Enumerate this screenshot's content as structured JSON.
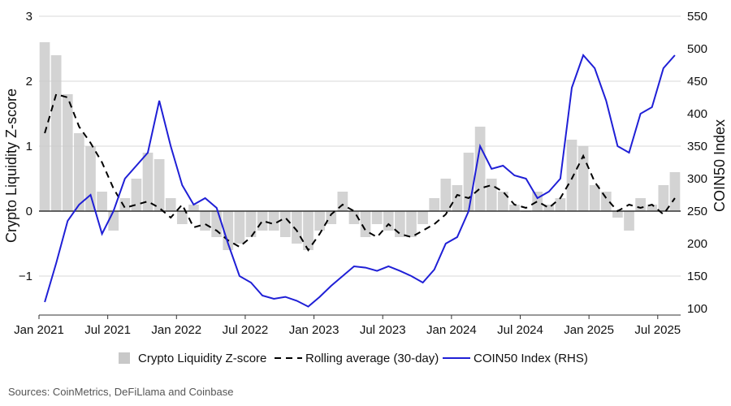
{
  "source_note": "Sources: CoinMetrics, DeFiLlama and Coinbase",
  "colors": {
    "bars": "#c8c8c8",
    "rolling": "#000000",
    "coin50": "#1f1fd6",
    "zero_line": "#333333",
    "grid": "#d9d9d9"
  },
  "chart_data": {
    "type": "line",
    "title": "",
    "xlabel": "",
    "ylabel": "Crypto Liquidity Z-score",
    "y2label": "COIN50 Index",
    "ylim": [
      -1.6,
      3.0
    ],
    "y2lim": [
      90,
      550
    ],
    "yticks": [
      3,
      2,
      1,
      0,
      -1
    ],
    "ytick_labels": [
      "3",
      "2",
      "1",
      "0",
      "−1"
    ],
    "y2ticks": [
      550,
      500,
      450,
      400,
      350,
      300,
      250,
      200,
      150,
      100
    ],
    "x_range": [
      "2021-01",
      "2025-09"
    ],
    "xticks": [
      "Jan 2021",
      "Jul 2021",
      "Jan 2022",
      "Jul 2022",
      "Jan 2023",
      "Jul 2023",
      "Jan 2024",
      "Jul 2024",
      "Jan 2025",
      "Jul 2025"
    ],
    "grid": true,
    "legend_position": "bottom",
    "series": [
      {
        "name": "Crypto Liquidity Z-score",
        "type": "bar",
        "axis": "left",
        "x": [
          "2021-01",
          "2021-02",
          "2021-03",
          "2021-04",
          "2021-05",
          "2021-06",
          "2021-07",
          "2021-08",
          "2021-09",
          "2021-10",
          "2021-11",
          "2021-12",
          "2022-01",
          "2022-02",
          "2022-03",
          "2022-04",
          "2022-05",
          "2022-06",
          "2022-07",
          "2022-08",
          "2022-09",
          "2022-10",
          "2022-11",
          "2022-12",
          "2023-01",
          "2023-02",
          "2023-03",
          "2023-04",
          "2023-05",
          "2023-06",
          "2023-07",
          "2023-08",
          "2023-09",
          "2023-10",
          "2023-11",
          "2023-12",
          "2024-01",
          "2024-02",
          "2024-03",
          "2024-04",
          "2024-05",
          "2024-06",
          "2024-07",
          "2024-08",
          "2024-09",
          "2024-10",
          "2024-11",
          "2024-12",
          "2025-01",
          "2025-02",
          "2025-03",
          "2025-04",
          "2025-05",
          "2025-06",
          "2025-07",
          "2025-08"
        ],
        "values": [
          2.6,
          2.4,
          1.8,
          1.2,
          1.0,
          0.3,
          -0.3,
          0.2,
          0.5,
          0.9,
          0.8,
          0.2,
          -0.2,
          0.1,
          -0.3,
          -0.4,
          -0.6,
          -0.5,
          -0.4,
          -0.3,
          -0.3,
          -0.4,
          -0.5,
          -0.6,
          -0.3,
          -0.2,
          0.3,
          -0.2,
          -0.4,
          -0.2,
          -0.3,
          -0.4,
          -0.4,
          -0.2,
          0.2,
          0.5,
          0.4,
          0.9,
          1.3,
          0.5,
          0.3,
          0.1,
          0.0,
          0.3,
          0.1,
          0.2,
          1.1,
          1.0,
          0.4,
          0.3,
          -0.1,
          -0.3,
          0.2,
          0.1,
          0.4,
          0.6
        ]
      },
      {
        "name": "Rolling average (30-day)",
        "type": "line",
        "style": "dashed",
        "axis": "left",
        "x": [
          "2021-01",
          "2021-02",
          "2021-03",
          "2021-04",
          "2021-05",
          "2021-06",
          "2021-07",
          "2021-08",
          "2021-09",
          "2021-10",
          "2021-11",
          "2021-12",
          "2022-01",
          "2022-02",
          "2022-03",
          "2022-04",
          "2022-05",
          "2022-06",
          "2022-07",
          "2022-08",
          "2022-09",
          "2022-10",
          "2022-11",
          "2022-12",
          "2023-01",
          "2023-02",
          "2023-03",
          "2023-04",
          "2023-05",
          "2023-06",
          "2023-07",
          "2023-08",
          "2023-09",
          "2023-10",
          "2023-11",
          "2023-12",
          "2024-01",
          "2024-02",
          "2024-03",
          "2024-04",
          "2024-05",
          "2024-06",
          "2024-07",
          "2024-08",
          "2024-09",
          "2024-10",
          "2024-11",
          "2024-12",
          "2025-01",
          "2025-02",
          "2025-03",
          "2025-04",
          "2025-05",
          "2025-06",
          "2025-07",
          "2025-08"
        ],
        "values": [
          1.2,
          1.8,
          1.75,
          1.3,
          1.05,
          0.75,
          0.35,
          0.05,
          0.1,
          0.15,
          0.05,
          -0.1,
          0.1,
          -0.25,
          -0.2,
          -0.3,
          -0.45,
          -0.55,
          -0.4,
          -0.15,
          -0.2,
          -0.1,
          -0.3,
          -0.6,
          -0.35,
          -0.05,
          0.1,
          0.0,
          -0.3,
          -0.4,
          -0.2,
          -0.35,
          -0.4,
          -0.3,
          -0.2,
          -0.05,
          0.25,
          0.2,
          0.35,
          0.4,
          0.3,
          0.1,
          0.05,
          0.15,
          0.05,
          0.2,
          0.5,
          0.85,
          0.45,
          0.2,
          0.0,
          0.1,
          0.05,
          0.1,
          -0.05,
          0.2
        ]
      },
      {
        "name": "COIN50 Index (RHS)",
        "type": "line",
        "axis": "right",
        "x": [
          "2021-01",
          "2021-02",
          "2021-03",
          "2021-04",
          "2021-05",
          "2021-06",
          "2021-07",
          "2021-08",
          "2021-09",
          "2021-10",
          "2021-11",
          "2021-12",
          "2022-01",
          "2022-02",
          "2022-03",
          "2022-04",
          "2022-05",
          "2022-06",
          "2022-07",
          "2022-08",
          "2022-09",
          "2022-10",
          "2022-11",
          "2022-12",
          "2023-01",
          "2023-02",
          "2023-03",
          "2023-04",
          "2023-05",
          "2023-06",
          "2023-07",
          "2023-08",
          "2023-09",
          "2023-10",
          "2023-11",
          "2023-12",
          "2024-01",
          "2024-02",
          "2024-03",
          "2024-04",
          "2024-05",
          "2024-06",
          "2024-07",
          "2024-08",
          "2024-09",
          "2024-10",
          "2024-11",
          "2024-12",
          "2025-01",
          "2025-02",
          "2025-03",
          "2025-04",
          "2025-05",
          "2025-06",
          "2025-07",
          "2025-08"
        ],
        "values": [
          110,
          170,
          235,
          260,
          275,
          215,
          250,
          300,
          320,
          340,
          420,
          350,
          290,
          260,
          270,
          255,
          200,
          150,
          140,
          120,
          115,
          118,
          112,
          103,
          118,
          135,
          150,
          165,
          163,
          158,
          165,
          158,
          150,
          140,
          160,
          200,
          210,
          250,
          350,
          315,
          320,
          305,
          300,
          270,
          280,
          300,
          440,
          490,
          470,
          420,
          350,
          340,
          400,
          410,
          470,
          490
        ]
      }
    ]
  },
  "legend": [
    {
      "label": "Crypto Liquidity Z-score"
    },
    {
      "label": "Rolling average (30-day)"
    },
    {
      "label": "COIN50 Index (RHS)"
    }
  ]
}
